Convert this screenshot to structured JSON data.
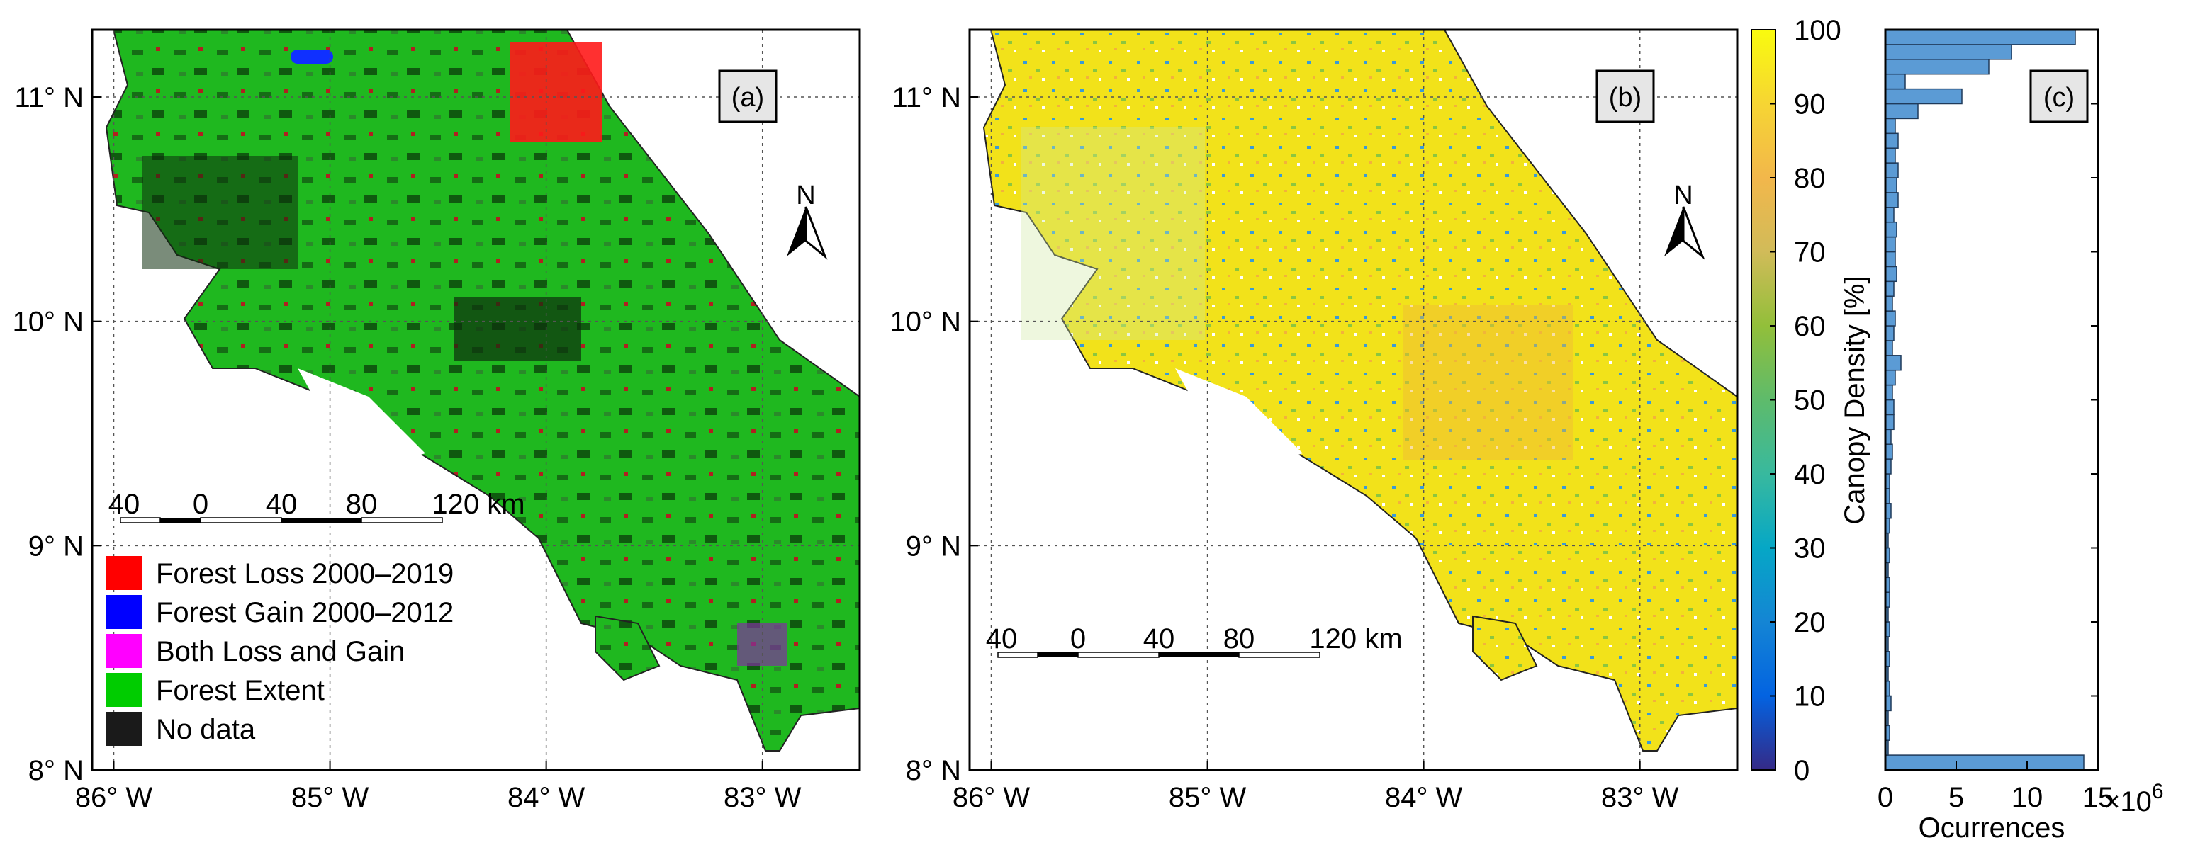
{
  "chart_data": [
    {
      "id": "a",
      "type": "map",
      "panel_label": "(a)",
      "lon_ticks": [
        "86° W",
        "85° W",
        "84° W",
        "83° W"
      ],
      "lon_values": [
        -86,
        -85,
        -84,
        -83
      ],
      "lat_ticks": [
        "11° N",
        "10° N",
        "9° N",
        "8° N"
      ],
      "lat_values": [
        11,
        10,
        9,
        8
      ],
      "xlim": [
        -86.1,
        -82.55
      ],
      "ylim": [
        8.0,
        11.3
      ],
      "north_arrow": "N",
      "scale_bar": [
        "40",
        "0",
        "40",
        "80",
        "120 km"
      ],
      "scale_bar_km": [
        -40,
        0,
        40,
        80,
        120
      ],
      "legend": [
        {
          "label": "Forest Loss 2000–2019",
          "color": "#ff0000"
        },
        {
          "label": "Forest Gain 2000–2012",
          "color": "#0000ff"
        },
        {
          "label": "Both Loss and Gain",
          "color": "#ff00ff"
        },
        {
          "label": "Forest Extent",
          "color": "#00cc00"
        },
        {
          "label": "No data",
          "color": "#1a1a1a"
        }
      ],
      "legend_position": "bottom-left"
    },
    {
      "id": "b",
      "type": "map",
      "panel_label": "(b)",
      "lon_ticks": [
        "86° W",
        "85° W",
        "84° W",
        "83° W"
      ],
      "lon_values": [
        -86,
        -85,
        -84,
        -83
      ],
      "lat_ticks": [
        "11° N",
        "10° N",
        "9° N",
        "8° N"
      ],
      "lat_values": [
        11,
        10,
        9,
        8
      ],
      "xlim": [
        -86.1,
        -82.55
      ],
      "ylim": [
        8.0,
        11.3
      ],
      "north_arrow": "N",
      "scale_bar": [
        "40",
        "0",
        "40",
        "80",
        "120 km"
      ],
      "scale_bar_km": [
        -40,
        0,
        40,
        80,
        120
      ],
      "colorbar": {
        "label": "Canopy Density [%]",
        "ticks": [
          0,
          10,
          20,
          30,
          40,
          50,
          60,
          70,
          80,
          90,
          100
        ],
        "range": [
          0,
          100
        ],
        "colormap": "parula"
      }
    },
    {
      "id": "c",
      "type": "bar",
      "orientation": "horizontal",
      "panel_label": "(c)",
      "xlabel": "Ocurrences",
      "x_multiplier": "×10",
      "x_multiplier_exp": "6",
      "xlim": [
        0,
        15
      ],
      "xticks": [
        0,
        5,
        10,
        15
      ],
      "ylim": [
        0,
        100
      ],
      "bin_width": 2,
      "bins_start": [
        0,
        2,
        4,
        6,
        8,
        10,
        12,
        14,
        16,
        18,
        20,
        22,
        24,
        26,
        28,
        30,
        32,
        34,
        36,
        38,
        40,
        42,
        44,
        46,
        48,
        50,
        52,
        54,
        56,
        58,
        60,
        62,
        64,
        66,
        68,
        70,
        72,
        74,
        76,
        78,
        80,
        82,
        84,
        86,
        88,
        90,
        92,
        94,
        96,
        98
      ],
      "values": [
        14.0,
        0.2,
        0.3,
        0.2,
        0.4,
        0.3,
        0.2,
        0.3,
        0.2,
        0.3,
        0.2,
        0.3,
        0.3,
        0.2,
        0.3,
        0.2,
        0.3,
        0.4,
        0.3,
        0.3,
        0.4,
        0.5,
        0.4,
        0.6,
        0.6,
        0.5,
        0.7,
        1.1,
        0.5,
        0.6,
        0.7,
        0.5,
        0.6,
        0.8,
        0.7,
        0.7,
        0.8,
        0.6,
        0.9,
        0.8,
        0.9,
        0.7,
        0.9,
        0.7,
        2.3,
        5.4,
        1.4,
        7.3,
        8.9,
        13.4
      ]
    }
  ]
}
